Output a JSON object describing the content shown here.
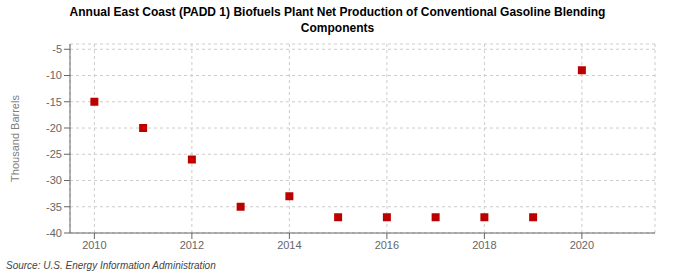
{
  "chart_data": {
    "type": "scatter",
    "title": "Annual East Coast (PADD 1) Biofuels Plant Net Production of Conventional Gasoline Blending\nComponents",
    "ylabel": "Thousand Barrels",
    "annotations": [
      "Source: U.S. Energy Information Administration"
    ],
    "x": [
      2010,
      2011,
      2012,
      2013,
      2014,
      2015,
      2016,
      2017,
      2018,
      2019,
      2020
    ],
    "values": [
      -15,
      -20,
      -26,
      -35,
      -33,
      -37,
      -37,
      -37,
      -37,
      -37,
      -9
    ],
    "color": "#bb0000",
    "marker": "square",
    "xlim": [
      2009.5,
      2021.5
    ],
    "ylim": [
      -40,
      -4
    ],
    "xticks": [
      2010,
      2012,
      2014,
      2016,
      2018,
      2020
    ],
    "yticks": [
      -5,
      -10,
      -15,
      -20,
      -25,
      -30,
      -35,
      -40
    ],
    "grid": true
  }
}
